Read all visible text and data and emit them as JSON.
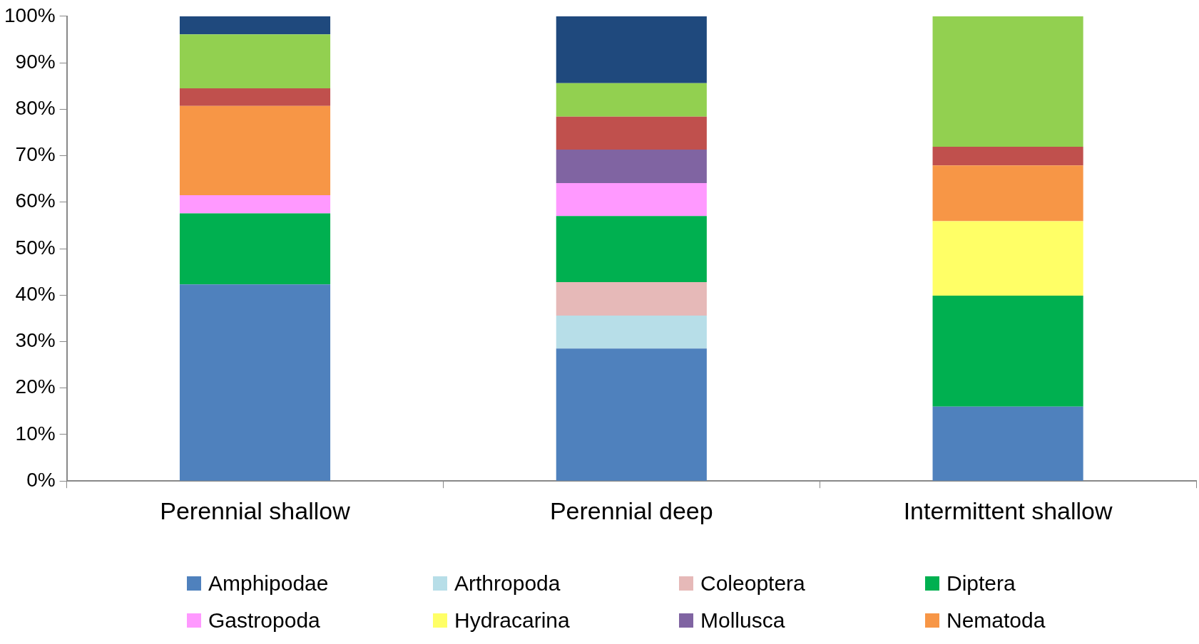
{
  "chart_data": {
    "type": "bar",
    "stacked": true,
    "categories": [
      "Perennial shallow",
      "Perennial deep",
      "Intermittent shallow"
    ],
    "series": [
      {
        "name": "Amphipodae",
        "color": "#4f81bd",
        "values": [
          42.3,
          28.5,
          16.0
        ]
      },
      {
        "name": "Arthropoda",
        "color": "#b7dee8",
        "values": [
          0,
          7.1,
          0
        ]
      },
      {
        "name": "Coleoptera",
        "color": "#e6b9b8",
        "values": [
          0,
          7.2,
          0
        ]
      },
      {
        "name": "Diptera",
        "color": "#00b050",
        "values": [
          15.3,
          14.2,
          23.9
        ]
      },
      {
        "name": "Gastropoda",
        "color": "#ff99ff",
        "values": [
          3.9,
          7.1,
          0
        ]
      },
      {
        "name": "Hydracarina",
        "color": "#ffff66",
        "values": [
          0,
          0,
          16.0
        ]
      },
      {
        "name": "Mollusca",
        "color": "#8064a2",
        "values": [
          0,
          7.2,
          0
        ]
      },
      {
        "name": "Nematoda",
        "color": "#f79646",
        "values": [
          19.2,
          0,
          12.0
        ]
      },
      {
        "color": "#c0504d",
        "values": [
          3.8,
          7.1,
          4.0
        ]
      },
      {
        "color": "#92d050",
        "values": [
          11.6,
          7.2,
          28.1
        ]
      },
      {
        "color": "#1f497d",
        "values": [
          3.9,
          14.4,
          0
        ]
      }
    ],
    "ylim": [
      0,
      100
    ],
    "yticks": [
      {
        "value": 0,
        "label": "0%"
      },
      {
        "value": 10,
        "label": "10%"
      },
      {
        "value": 20,
        "label": "20%"
      },
      {
        "value": 30,
        "label": "30%"
      },
      {
        "value": 40,
        "label": "40%"
      },
      {
        "value": 50,
        "label": "50%"
      },
      {
        "value": 60,
        "label": "60%"
      },
      {
        "value": 70,
        "label": "70%"
      },
      {
        "value": 80,
        "label": "80%"
      },
      {
        "value": 90,
        "label": "90%"
      },
      {
        "value": 100,
        "label": "100%"
      }
    ],
    "legend": "bottom",
    "grid": false
  }
}
